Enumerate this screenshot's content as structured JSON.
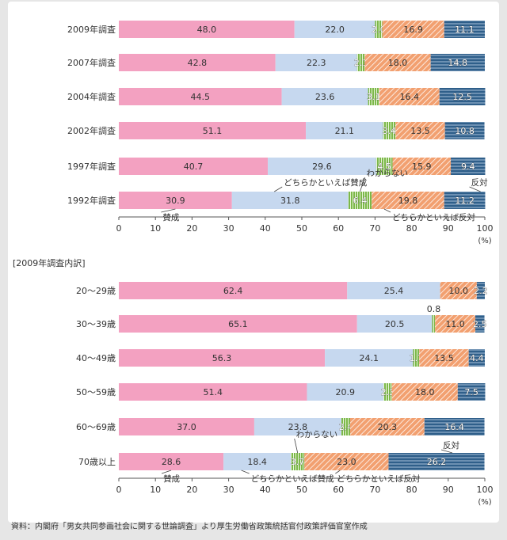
{
  "colors": {
    "background": "#e6e6e6",
    "panel": "#ffffff",
    "agree": "#f3a1c1",
    "somewhat_agree": "#c6d8ef",
    "dont_know": "#7cb84a",
    "somewhat_disagree": "#f2a070",
    "disagree": "#2f5f8a",
    "axis": "#555555"
  },
  "footer": {
    "source": "資料：内閣府「男女共同参画社会に関する世論調査」より厚生労働省政策統括官付政策評価官室作成"
  },
  "chart_data": [
    {
      "type": "bar",
      "orientation": "horizontal-stacked",
      "title": "",
      "xlim": [
        0,
        100
      ],
      "xticks": [
        "0",
        "10",
        "20",
        "30",
        "40",
        "50",
        "60",
        "70",
        "80",
        "90",
        "100"
      ],
      "xunit": "(%)",
      "categories": [
        "2009年調査",
        "2007年調査",
        "2004年調査",
        "2002年調査",
        "1997年調査",
        "1992年調査"
      ],
      "series": [
        {
          "name": "賛成",
          "key": "agree",
          "values": [
            48.0,
            42.8,
            44.5,
            51.1,
            40.7,
            30.9
          ],
          "labels": [
            "48.0",
            "42.8",
            "44.5",
            "51.1",
            "40.7",
            "30.9"
          ]
        },
        {
          "name": "どちらかといえば賛成",
          "key": "somewhat_agree",
          "values": [
            22.0,
            22.3,
            23.6,
            21.1,
            29.6,
            31.8
          ],
          "labels": [
            "22.0",
            "22.3",
            "23.6",
            "21.1",
            "29.6",
            "31.8"
          ]
        },
        {
          "name": "わからない",
          "key": "dont_know",
          "values": [
            2.0,
            2.1,
            3.1,
            3.4,
            4.5,
            6.4
          ],
          "labels": [
            "2.0",
            "2.1",
            "3.1",
            "3.4",
            "4.5",
            "6.4"
          ]
        },
        {
          "name": "どちらかといえば反対",
          "key": "somewhat_disagree",
          "values": [
            16.9,
            18.0,
            16.4,
            13.5,
            15.9,
            19.8
          ],
          "labels": [
            "16.9",
            "18.0",
            "16.4",
            "13.5",
            "15.9",
            "19.8"
          ]
        },
        {
          "name": "反対",
          "key": "disagree",
          "values": [
            11.1,
            14.8,
            12.5,
            10.8,
            9.4,
            11.2
          ],
          "labels": [
            "11.1",
            "14.8",
            "12.5",
            "10.8",
            "9.4",
            "11.2"
          ]
        }
      ],
      "annotations": {
        "agree": "賛成",
        "somewhat_agree": "どちらかといえば賛成",
        "dont_know": "わからない",
        "somewhat_disagree": "どちらかといえば反対",
        "disagree": "反対"
      }
    },
    {
      "type": "bar",
      "orientation": "horizontal-stacked",
      "title": "[2009年調査内訳]",
      "xlim": [
        0,
        100
      ],
      "xticks": [
        "0",
        "10",
        "20",
        "30",
        "40",
        "50",
        "60",
        "70",
        "80",
        "90",
        "100"
      ],
      "xunit": "(%)",
      "categories": [
        "20～29歳",
        "30～39歳",
        "40～49歳",
        "50～59歳",
        "60～69歳",
        "70歳以上"
      ],
      "series": [
        {
          "name": "賛成",
          "key": "agree",
          "values": [
            62.4,
            65.1,
            56.3,
            51.4,
            37.0,
            28.6
          ],
          "labels": [
            "62.4",
            "65.1",
            "56.3",
            "51.4",
            "37.0",
            "28.6"
          ]
        },
        {
          "name": "どちらかといえば賛成",
          "key": "somewhat_agree",
          "values": [
            25.4,
            20.5,
            24.1,
            20.9,
            23.8,
            18.4
          ],
          "labels": [
            "25.4",
            "20.5",
            "24.1",
            "20.9",
            "23.8",
            "18.4"
          ]
        },
        {
          "name": "わからない",
          "key": "dont_know",
          "values": [
            0.0,
            0.8,
            1.7,
            2.3,
            2.4,
            3.7
          ],
          "labels": [
            "",
            "0.8",
            "1.7",
            "2.3",
            "2.4",
            "3.7"
          ]
        },
        {
          "name": "どちらかといえば反対",
          "key": "somewhat_disagree",
          "values": [
            10.0,
            11.0,
            13.5,
            18.0,
            20.3,
            23.0
          ],
          "labels": [
            "10.0",
            "11.0",
            "13.5",
            "18.0",
            "20.3",
            "23.0"
          ]
        },
        {
          "name": "反対",
          "key": "disagree",
          "values": [
            2.2,
            2.5,
            4.4,
            7.5,
            16.4,
            26.2
          ],
          "labels": [
            "2.2",
            "2.5",
            "4.4",
            "7.5",
            "16.4",
            "26.2"
          ]
        }
      ],
      "annotations": {
        "agree": "賛成",
        "somewhat_agree": "どちらかといえば賛成",
        "dont_know": "わからない",
        "somewhat_disagree": "どちらかといえば反対",
        "disagree": "反対"
      }
    }
  ]
}
